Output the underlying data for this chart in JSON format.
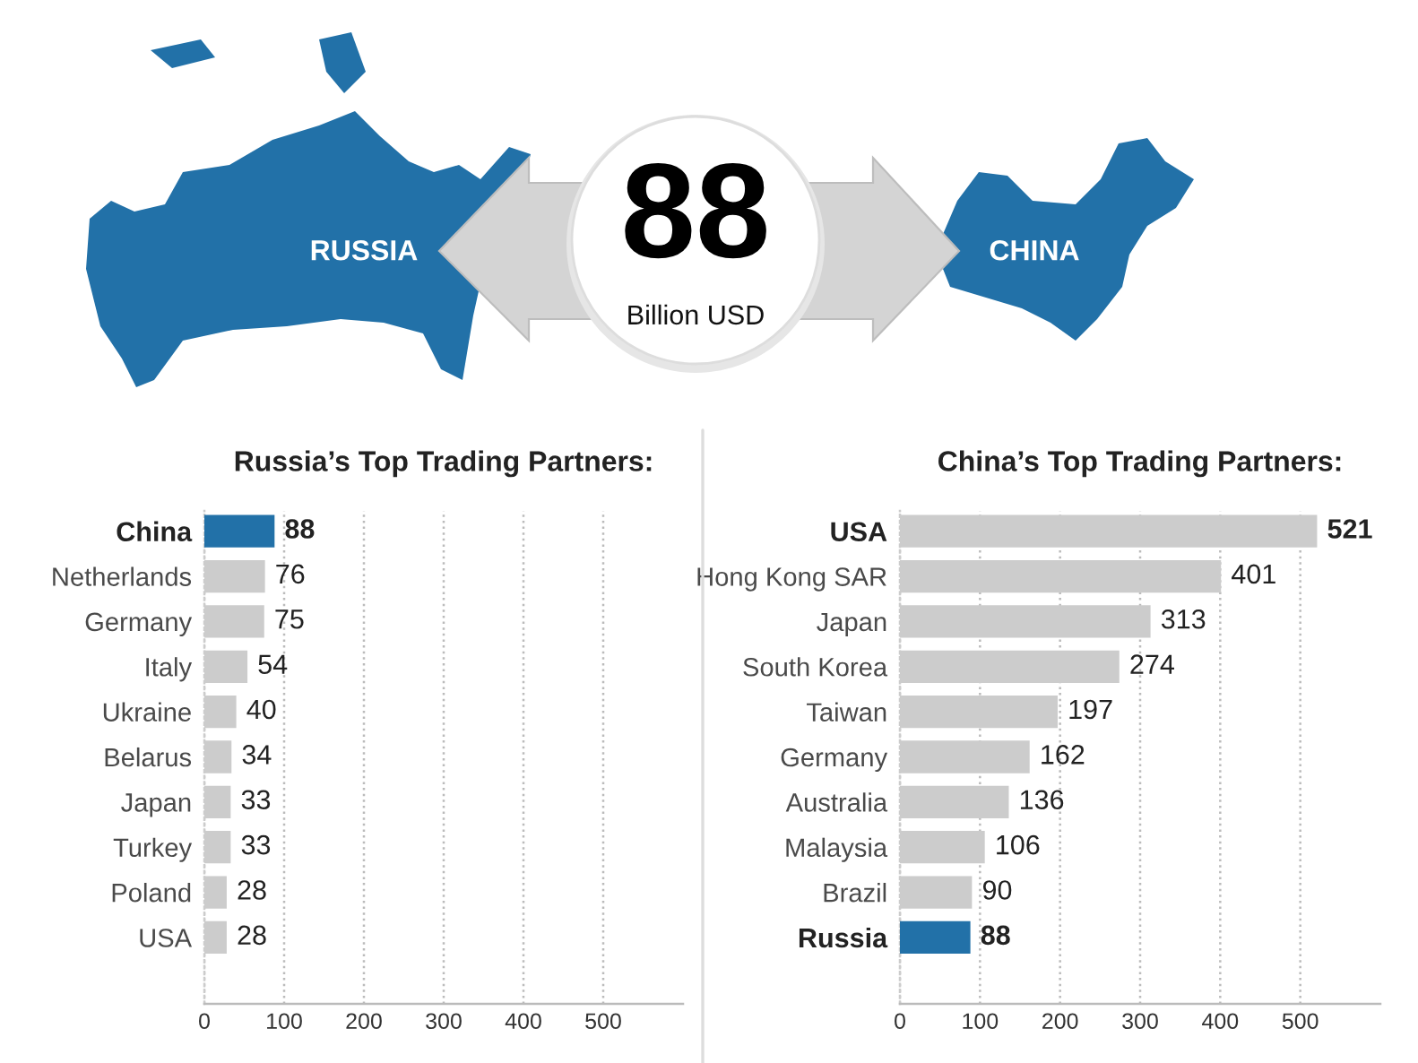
{
  "chart_data": [
    {
      "type": "other",
      "annotations": [
        "RUSSIA",
        "88",
        "Billion USD",
        "CHINA"
      ]
    },
    {
      "type": "bar",
      "orientation": "horizontal",
      "title": "Russia’s Top Trading Partners:",
      "categories": [
        "China",
        "Netherlands",
        "Germany",
        "Italy",
        "Ukraine",
        "Belarus",
        "Japan",
        "Turkey",
        "Poland",
        "USA"
      ],
      "values": [
        88,
        76,
        75,
        54,
        40,
        34,
        33,
        33,
        28,
        28
      ],
      "colors": [
        "#2271a8",
        "#cccccc",
        "#cccccc",
        "#cccccc",
        "#cccccc",
        "#cccccc",
        "#cccccc",
        "#cccccc",
        "#cccccc",
        "#cccccc"
      ],
      "xlim": [
        0,
        600
      ],
      "xticks": [
        0,
        100,
        200,
        300,
        400,
        500
      ],
      "grid": "x",
      "data_labels": true
    },
    {
      "type": "bar",
      "orientation": "horizontal",
      "title": "China’s Top Trading Partners:",
      "categories": [
        "USA",
        "Hong Kong SAR",
        "Japan",
        "South Korea",
        "Taiwan",
        "Germany",
        "Australia",
        "Malaysia",
        "Brazil",
        "Russia"
      ],
      "values": [
        521,
        401,
        313,
        274,
        197,
        162,
        136,
        106,
        90,
        88
      ],
      "colors": [
        "#cccccc",
        "#cccccc",
        "#cccccc",
        "#cccccc",
        "#cccccc",
        "#cccccc",
        "#cccccc",
        "#cccccc",
        "#cccccc",
        "#2271a8"
      ],
      "xlim": [
        0,
        600
      ],
      "xticks": [
        0,
        100,
        200,
        300,
        400,
        500
      ],
      "grid": "x",
      "data_labels": true
    }
  ]
}
